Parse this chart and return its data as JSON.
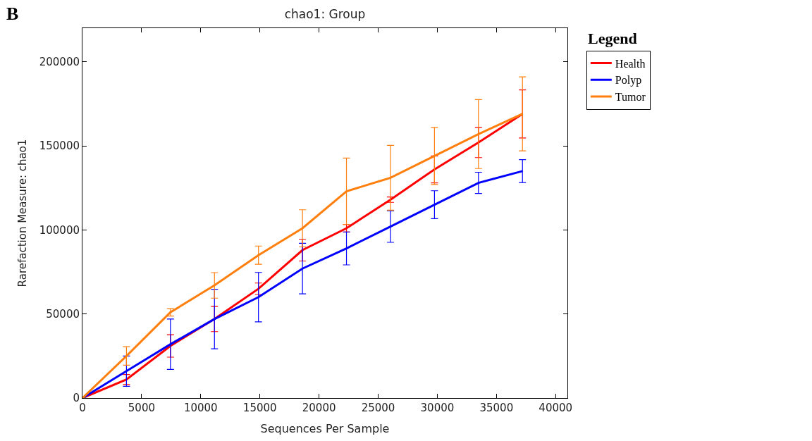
{
  "chart_data": {
    "type": "line",
    "title": "chao1: Group",
    "xlabel": "Sequences Per Sample",
    "ylabel": "Rarefaction Measure: chao1",
    "legend_title": "Legend",
    "annotations": [
      "B"
    ],
    "x": [
      0,
      3720,
      7440,
      11160,
      14880,
      18600,
      22320,
      26040,
      29760,
      33480,
      37200
    ],
    "series": [
      {
        "name": "Health",
        "color": "#ff0000",
        "values": [
          0,
          11000,
          31000,
          47000,
          65000,
          88000,
          101000,
          118000,
          136000,
          152000,
          169000
        ],
        "errors": [
          null,
          3000,
          6700,
          7500,
          3400,
          6500,
          2200,
          1600,
          8000,
          9000,
          14300
        ]
      },
      {
        "name": "Polyp",
        "color": "#0000ff",
        "values": [
          0,
          16000,
          32000,
          47000,
          60000,
          77000,
          89000,
          102000,
          115000,
          128000,
          135000
        ],
        "errors": [
          null,
          9000,
          15000,
          17700,
          14700,
          15000,
          9800,
          9400,
          8300,
          6300,
          6800
        ]
      },
      {
        "name": "Tumor",
        "color": "#ff7f0e",
        "values": [
          0,
          25000,
          51000,
          67000,
          85000,
          101000,
          123000,
          131000,
          144000,
          157000,
          169000
        ],
        "errors": [
          null,
          5500,
          2200,
          7600,
          5400,
          11000,
          19700,
          19300,
          17000,
          20500,
          22000
        ]
      }
    ],
    "xlim": [
      0,
      41000
    ],
    "xticks": [
      0,
      5000,
      10000,
      15000,
      20000,
      25000,
      30000,
      35000,
      40000
    ],
    "ylim": [
      0,
      220000
    ],
    "yticks": [
      0,
      50000,
      100000,
      150000,
      200000
    ],
    "grid": false,
    "legend": "right",
    "marker": "none",
    "line_style": "solid"
  }
}
